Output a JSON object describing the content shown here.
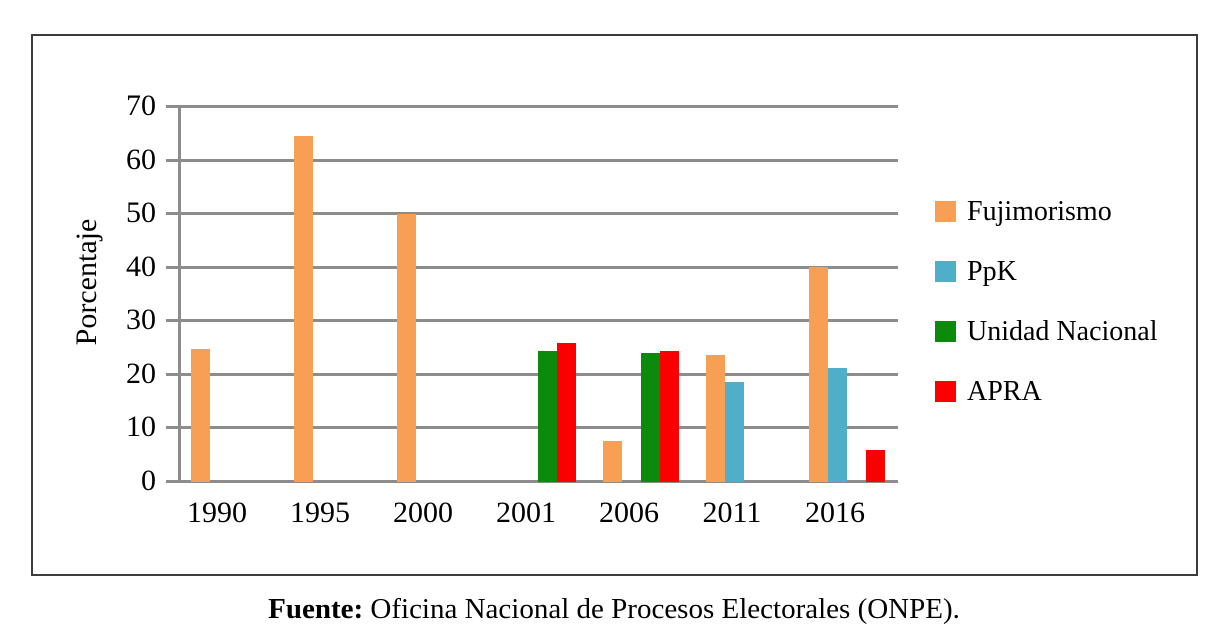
{
  "chart_data": {
    "type": "bar",
    "title": "",
    "ylabel": "Porcentaje",
    "xlabel": "",
    "ylim": [
      0,
      70
    ],
    "ytick_step": 10,
    "grid": "horizontal",
    "legend_position": "right",
    "categories": [
      "1990",
      "1995",
      "2000",
      "2001",
      "2006",
      "2011",
      "2016"
    ],
    "series": [
      {
        "name": "Fujimorismo",
        "color": "#F7A055",
        "values": [
          24.7,
          64.4,
          49.9,
          null,
          7.4,
          23.6,
          39.9
        ]
      },
      {
        "name": "PpK",
        "color": "#4FAEC8",
        "values": [
          null,
          null,
          null,
          null,
          null,
          18.5,
          21.1
        ]
      },
      {
        "name": "Unidad Nacional",
        "color": "#0B8A0B",
        "values": [
          null,
          null,
          null,
          24.3,
          23.8,
          null,
          null
        ]
      },
      {
        "name": "APRA",
        "color": "#FB0000",
        "values": [
          null,
          null,
          null,
          25.8,
          24.3,
          null,
          5.8
        ]
      }
    ],
    "gridline_color": "#8c8c8c",
    "frame_color": "#3c3c3c"
  },
  "caption": {
    "label": "Fuente:",
    "text": " Oficina Nacional de Procesos Electorales (ONPE)."
  }
}
